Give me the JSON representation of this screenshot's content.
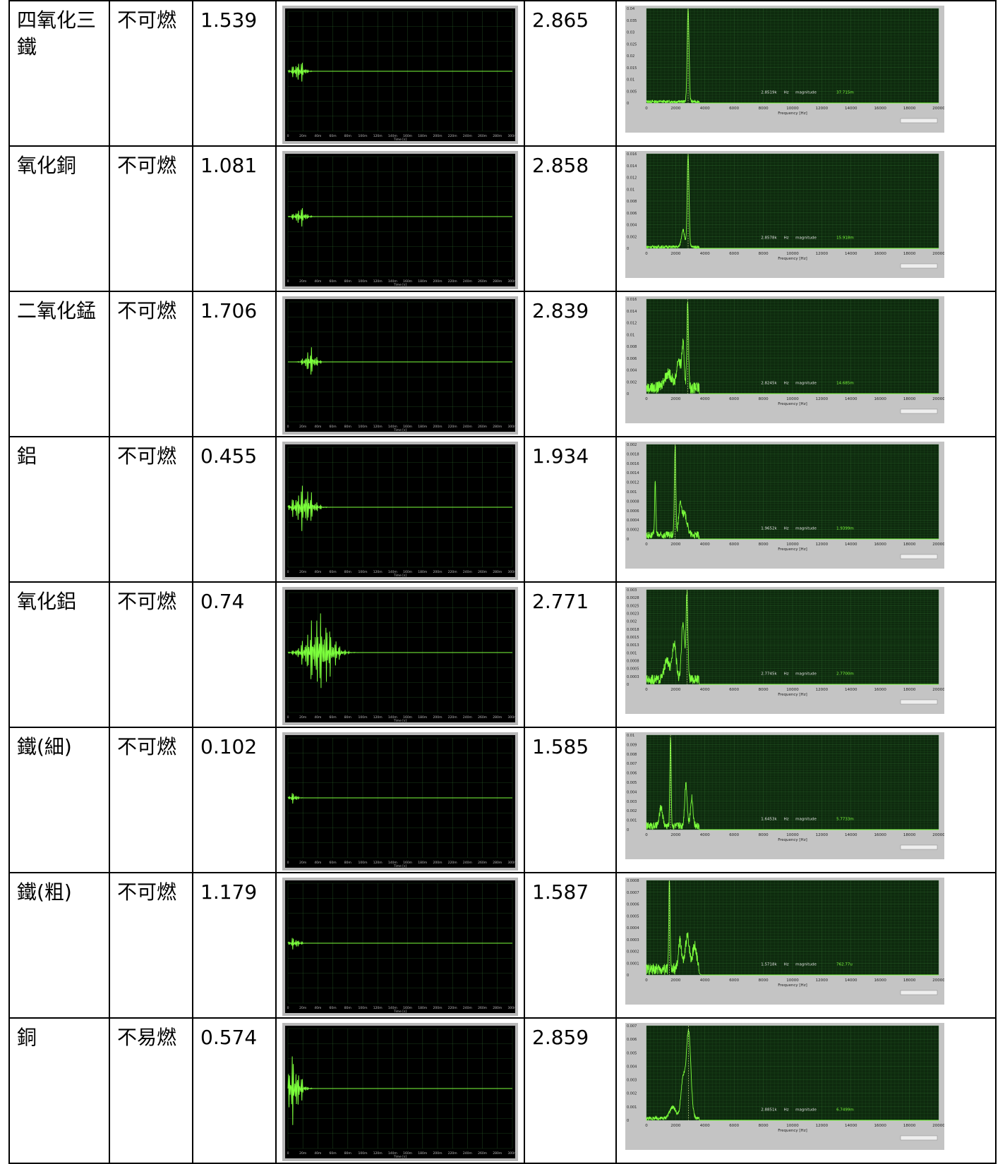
{
  "table": {
    "rows": [
      {
        "material": "四氧化三鐵",
        "flammability": "不可燃",
        "value1": "1.539",
        "value2": "2.865",
        "spectrum": {
          "y_ticks": [
            "0.04",
            "0.035",
            "0.03",
            "0.025",
            "0.02",
            "0.015",
            "0.01",
            "0.005",
            "0"
          ],
          "peak_freq": "2.8519k",
          "magnitude": "37.715m"
        }
      },
      {
        "material": "氧化銅",
        "flammability": "不可燃",
        "value1": "1.081",
        "value2": "2.858",
        "spectrum": {
          "y_ticks": [
            "0.016",
            "0.014",
            "0.012",
            "0.01",
            "0.008",
            "0.006",
            "0.004",
            "0.002",
            "0"
          ],
          "peak_freq": "2.8578k",
          "magnitude": "15.918m"
        }
      },
      {
        "material": "二氧化錳",
        "flammability": "不可燃",
        "value1": "1.706",
        "value2": "2.839",
        "spectrum": {
          "y_ticks": [
            "0.016",
            "0.014",
            "0.012",
            "0.01",
            "0.008",
            "0.006",
            "0.004",
            "0.002",
            "0"
          ],
          "peak_freq": "2.8245k",
          "magnitude": "14.685m"
        }
      },
      {
        "material": "鋁",
        "flammability": "不可燃",
        "value1": "0.455",
        "value2": "1.934",
        "spectrum": {
          "y_ticks": [
            "0.002",
            "0.0018",
            "0.0016",
            "0.0014",
            "0.0012",
            "0.001",
            "0.0008",
            "0.0006",
            "0.0004",
            "0.0002",
            "0"
          ],
          "peak_freq": "1.9652k",
          "magnitude": "1.9399m"
        }
      },
      {
        "material": "氧化鋁",
        "flammability": "不可燃",
        "value1": "0.74",
        "value2": "2.771",
        "spectrum": {
          "y_ticks": [
            "0.003",
            "0.0028",
            "0.0025",
            "0.0023",
            "0.002",
            "0.0018",
            "0.0015",
            "0.0013",
            "0.001",
            "0.0008",
            "0.0005",
            "0.0003",
            "0"
          ],
          "peak_freq": "2.7745k",
          "magnitude": "2.7700m"
        }
      },
      {
        "material": "鐵(細)",
        "flammability": "不可燃",
        "value1": "0.102",
        "value2": "1.585",
        "spectrum": {
          "y_ticks": [
            "0.01",
            "0.009",
            "0.008",
            "0.007",
            "0.006",
            "0.005",
            "0.004",
            "0.003",
            "0.002",
            "0.001",
            "0"
          ],
          "peak_freq": "1.6453k",
          "magnitude": "5.7733m"
        }
      },
      {
        "material": "鐵(粗)",
        "flammability": "不可燃",
        "value1": "1.179",
        "value2": "1.587",
        "spectrum": {
          "y_ticks": [
            "0.0008",
            "0.0007",
            "0.0006",
            "0.0005",
            "0.0004",
            "0.0003",
            "0.0002",
            "0.0001",
            "0"
          ],
          "peak_freq": "1.5718k",
          "magnitude": "762.77u"
        }
      },
      {
        "material": "銅",
        "flammability": "不易燃",
        "value1": "0.574",
        "value2": "2.859",
        "spectrum": {
          "y_ticks": [
            "0.007",
            "0.006",
            "0.005",
            "0.004",
            "0.003",
            "0.002",
            "0.001",
            "0"
          ],
          "peak_freq": "2.8851k",
          "magnitude": "6.7499m"
        }
      }
    ]
  },
  "waveform_plot": {
    "x_ticks": [
      "0",
      "20m",
      "40m",
      "60m",
      "80m",
      "100m",
      "120m",
      "140m",
      "160m",
      "180m",
      "200m",
      "220m",
      "240m",
      "260m",
      "280m",
      "300m"
    ],
    "x_label": "Time [s]"
  },
  "spectrum_plot": {
    "x_ticks": [
      "0",
      "2000",
      "4000",
      "6000",
      "8000",
      "10000",
      "12000",
      "14000",
      "16000",
      "18000",
      "20000"
    ],
    "x_label": "Frequency [Hz]",
    "hz_label": "Hz",
    "magnitude_label": "magnitude"
  },
  "colors": {
    "trace": "#7cff3c",
    "plot_bg_wave": "#000000",
    "plot_bg_spec": "#0e2a0e",
    "grid": "#2d6b2d"
  }
}
